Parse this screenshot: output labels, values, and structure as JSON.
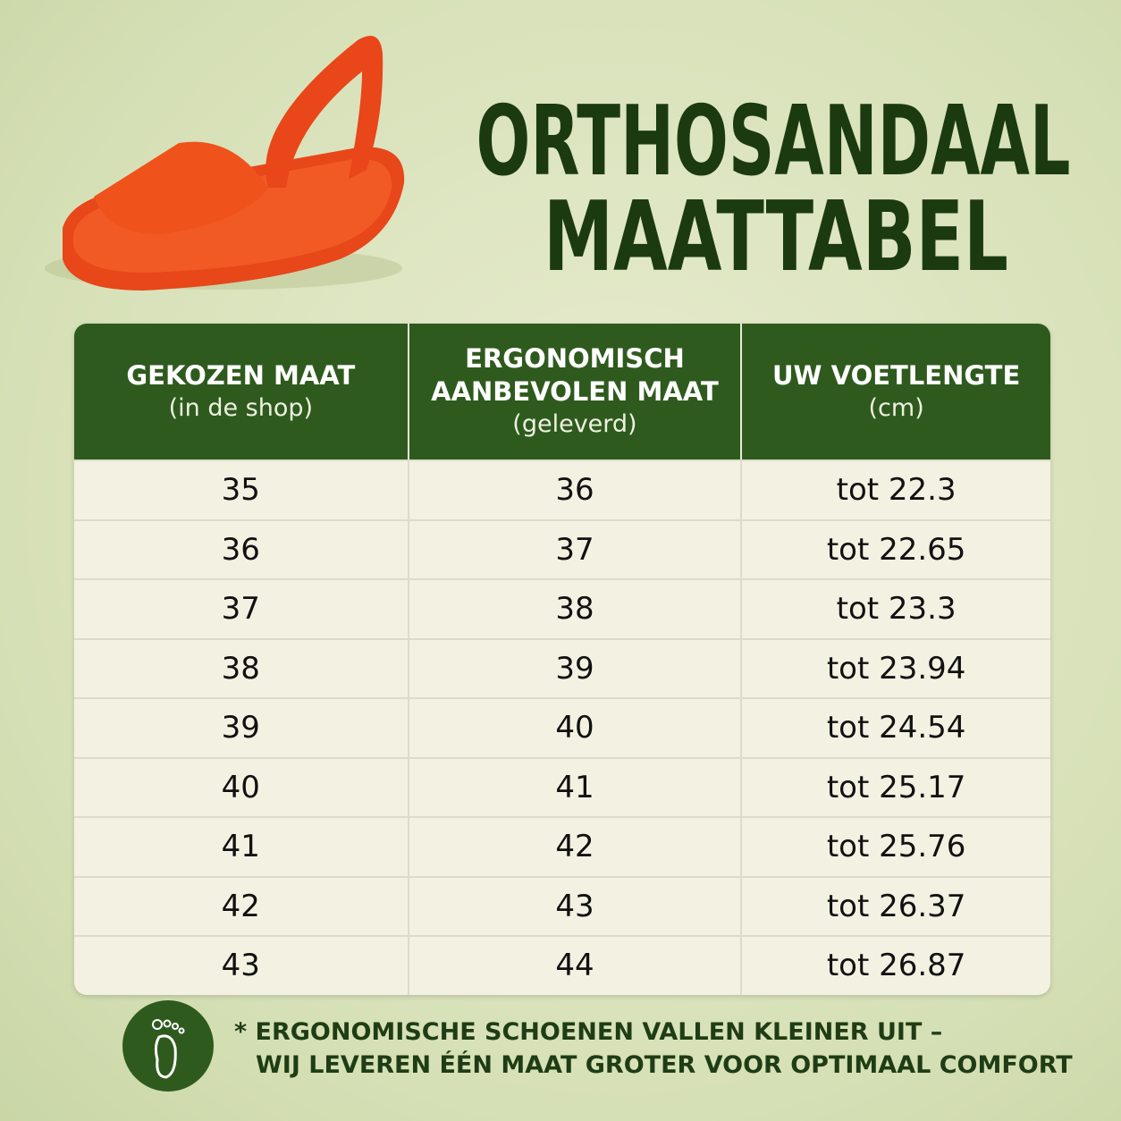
{
  "header": {
    "title_lines": [
      "ORTHOSANDAAL",
      "MAATTABEL"
    ]
  },
  "table": {
    "columns": [
      {
        "title_lines": [
          "GEKOZEN MAAT"
        ],
        "subtitle": "(in de shop)"
      },
      {
        "title_lines": [
          "ERGONOMISCH",
          "AANBEVOLEN MAAT"
        ],
        "subtitle": "(geleverd)"
      },
      {
        "title_lines": [
          "UW VOETLENGTE"
        ],
        "subtitle": "(cm)"
      }
    ],
    "rows": [
      [
        35,
        36,
        "tot 22.3"
      ],
      [
        36,
        37,
        "tot 22.65"
      ],
      [
        37,
        38,
        "tot 23.3"
      ],
      [
        38,
        39,
        "tot 23.94"
      ],
      [
        39,
        40,
        "tot 24.54"
      ],
      [
        40,
        41,
        "tot 25.17"
      ],
      [
        41,
        42,
        "tot 25.76"
      ],
      [
        42,
        43,
        "tot 26.37"
      ],
      [
        43,
        44,
        "tot 26.87"
      ]
    ]
  },
  "footnote": {
    "lines": [
      "* ERGONOMISCHE SCHOENEN VALLEN KLEINER UIT –",
      "WIJ LEVEREN ÉÉN MAAT GROTER VOOR OPTIMAAL COMFORT"
    ]
  }
}
